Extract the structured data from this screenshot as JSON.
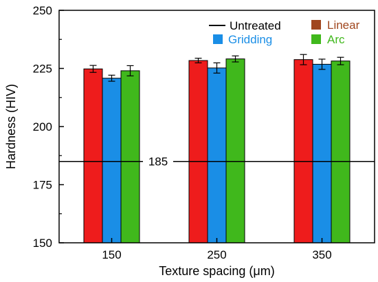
{
  "chart_data": {
    "type": "bar",
    "categories": [
      "150",
      "250",
      "350"
    ],
    "series": [
      {
        "name": "Linear",
        "values": [
          224.8,
          228.4,
          228.8
        ],
        "errors": [
          1.5,
          1.0,
          2.2
        ],
        "color": "#ee1c1c",
        "legend_color": "#a0461e",
        "text_color": "#a0461e"
      },
      {
        "name": "Gridding",
        "values": [
          220.8,
          225.2,
          226.8
        ],
        "errors": [
          1.3,
          2.2,
          2.2
        ],
        "color": "#1a8ee6",
        "legend_color": "#1a8ee6",
        "text_color": "#1a8ee6"
      },
      {
        "name": "Arc",
        "values": [
          224.0,
          229.1,
          228.2
        ],
        "errors": [
          2.2,
          1.3,
          1.6
        ],
        "color": "#40b81c",
        "legend_color": "#40b81c",
        "text_color": "#40b81c"
      }
    ],
    "reference_line": {
      "name": "Untreated",
      "value": 185,
      "label": "185",
      "color": "#000000"
    },
    "xlabel": "Texture spacing (μm)",
    "ylabel": "Hardness (HIV)",
    "ylim": [
      150,
      250
    ],
    "yticks": [
      "150",
      "175",
      "200",
      "225",
      "250"
    ],
    "legend_position": "top-right",
    "grid": false
  }
}
